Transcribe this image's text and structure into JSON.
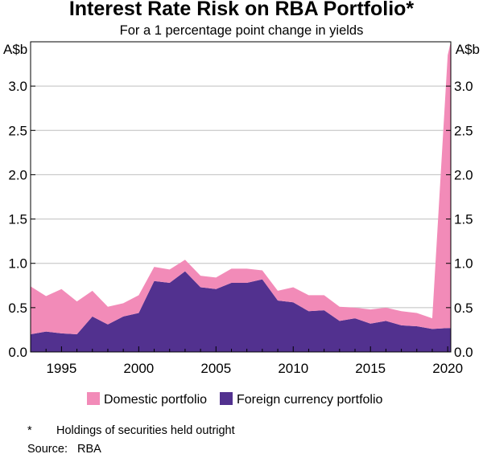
{
  "chart_data": {
    "type": "area",
    "stacked": true,
    "title": "Interest Rate Risk on RBA Portfolio*",
    "subtitle": "For a 1 percentage point change in yields",
    "y_unit_left": "A$b",
    "y_unit_right": "A$b",
    "ylim": [
      0,
      3.5
    ],
    "yticks": [
      "0.0",
      "0.5",
      "1.0",
      "1.5",
      "2.0",
      "2.5",
      "3.0"
    ],
    "yticks_values": [
      0,
      0.5,
      1.0,
      1.5,
      2.0,
      2.5,
      3.0
    ],
    "xlim": [
      1993,
      2020.2
    ],
    "xticks": [
      "1995",
      "2000",
      "2005",
      "2010",
      "2015",
      "2020"
    ],
    "xticks_values": [
      1995,
      2000,
      2005,
      2010,
      2015,
      2020
    ],
    "x": [
      1993,
      1994,
      1995,
      1996,
      1997,
      1998,
      1999,
      2000,
      2001,
      2002,
      2003,
      2004,
      2005,
      2006,
      2007,
      2008,
      2009,
      2010,
      2011,
      2012,
      2013,
      2014,
      2015,
      2016,
      2017,
      2018,
      2019,
      2020,
      2020.2
    ],
    "series": [
      {
        "name": "Foreign currency portfolio",
        "color": "#52318f",
        "values": [
          0.2,
          0.23,
          0.21,
          0.2,
          0.4,
          0.31,
          0.4,
          0.44,
          0.8,
          0.78,
          0.91,
          0.73,
          0.71,
          0.78,
          0.78,
          0.82,
          0.58,
          0.56,
          0.46,
          0.47,
          0.35,
          0.38,
          0.32,
          0.35,
          0.3,
          0.29,
          0.26,
          0.27,
          0.27
        ]
      },
      {
        "name": "Domestic portfolio",
        "color": "#f28bb8",
        "values": [
          0.54,
          0.4,
          0.5,
          0.37,
          0.29,
          0.2,
          0.15,
          0.2,
          0.16,
          0.15,
          0.13,
          0.13,
          0.13,
          0.16,
          0.16,
          0.1,
          0.11,
          0.17,
          0.18,
          0.17,
          0.16,
          0.12,
          0.16,
          0.15,
          0.16,
          0.15,
          0.12,
          3.08,
          3.23
        ]
      }
    ],
    "legend_position": "bottom",
    "footnote_marker": "*",
    "footnote": "Holdings of securities held outright",
    "source_label": "Source:",
    "source": "RBA"
  }
}
